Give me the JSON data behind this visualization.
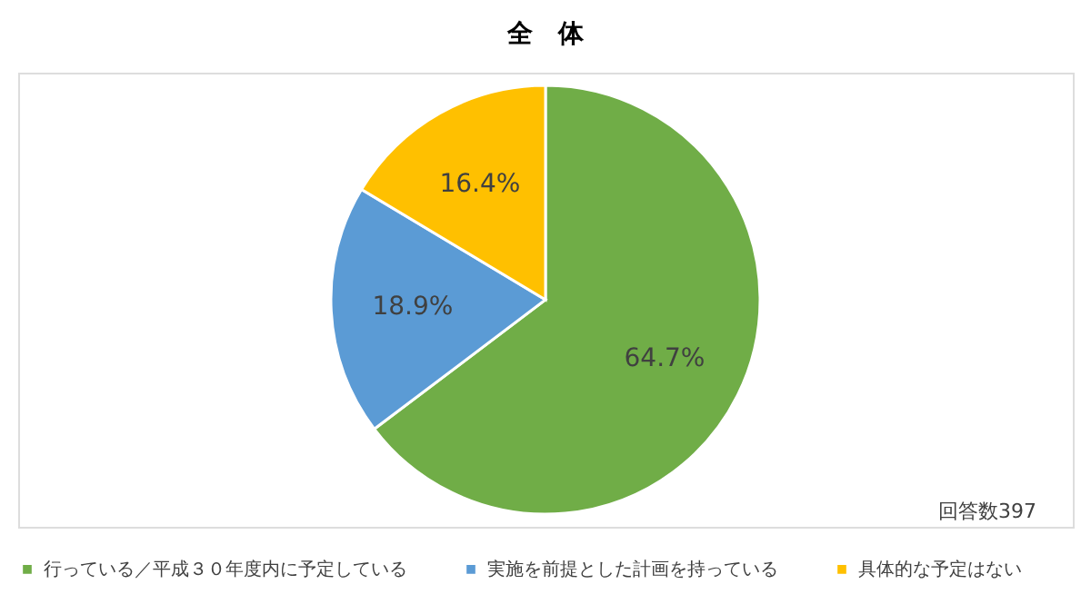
{
  "chart_data": {
    "type": "pie",
    "title": "全　体",
    "categories": [
      "行っている／平成３０年度内に予定している",
      "実施を前提とした計画を持っている",
      "具体的な予定はない"
    ],
    "values": [
      64.7,
      18.9,
      16.4
    ],
    "colors": [
      "#70ad47",
      "#5b9bd5",
      "#ffc000"
    ],
    "value_labels": [
      "64.7%",
      "18.9%",
      "16.4%"
    ],
    "annotations": [
      "回答数397"
    ],
    "legend": "bottom"
  }
}
